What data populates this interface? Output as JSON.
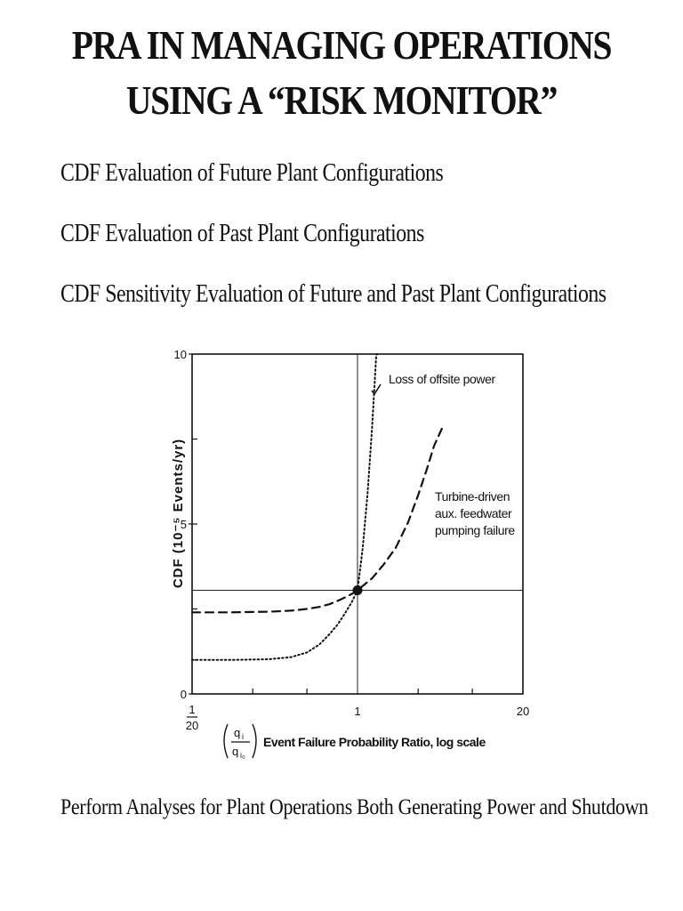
{
  "slide": {
    "title_line1": "PRA IN MANAGING OPERATIONS",
    "title_line2": "USING A “RISK MONITOR”",
    "bullets": [
      "CDF Evaluation of Future Plant Configurations",
      "CDF Evaluation of Past Plant Configurations",
      "CDF Sensitivity Evaluation of Future and Past Plant Configurations"
    ],
    "footer": "Perform Analyses for Plant Operations Both Generating Power and Shutdown"
  },
  "chart_data": {
    "type": "line",
    "title": "",
    "ylabel": "CDF (10⁻⁵ Events/yr)",
    "xlabel": "Event Failure Probability Ratio, log scale",
    "xlabel_ratio_num": "q",
    "xlabel_ratio_num_sub": "i",
    "xlabel_ratio_den": "q",
    "xlabel_ratio_den_sub": "i₀",
    "x_scale": "log",
    "xlim": [
      0.05,
      20
    ],
    "ylim": [
      0,
      10
    ],
    "x_ticks": [
      {
        "value": 0.05,
        "num": "1",
        "den": "20"
      },
      {
        "value": 1,
        "label": "1"
      },
      {
        "value": 20,
        "label": "20"
      }
    ],
    "y_ticks": [
      {
        "value": 0,
        "label": "0"
      },
      {
        "value": 5,
        "label": "5"
      },
      {
        "value": 10,
        "label": "10"
      }
    ],
    "reference_lines": {
      "x": 1,
      "y": 3.05
    },
    "base_point": {
      "x": 1,
      "y": 3.05
    },
    "series": [
      {
        "name": "Loss of offsite power",
        "style": "dotted",
        "x": [
          0.05,
          0.1,
          0.2,
          0.3,
          0.4,
          0.5,
          0.6,
          0.7,
          0.8,
          0.9,
          1.0,
          1.1,
          1.2,
          1.3,
          1.4,
          1.42
        ],
        "y": [
          1.0,
          1.0,
          1.02,
          1.08,
          1.22,
          1.45,
          1.75,
          2.05,
          2.38,
          2.7,
          3.05,
          4.3,
          5.9,
          7.8,
          9.9,
          10.0
        ]
      },
      {
        "name": "Turbine-driven aux. feedwater pumping failure",
        "style": "dashed",
        "x": [
          0.05,
          0.1,
          0.2,
          0.3,
          0.4,
          0.5,
          0.6,
          0.7,
          0.8,
          0.9,
          1.0,
          1.3,
          1.6,
          2.0,
          2.5,
          3.0,
          3.5,
          4.0,
          4.6
        ],
        "y": [
          2.4,
          2.4,
          2.42,
          2.45,
          2.5,
          2.56,
          2.64,
          2.74,
          2.84,
          2.94,
          3.05,
          3.4,
          3.8,
          4.3,
          5.05,
          5.85,
          6.6,
          7.3,
          7.8
        ]
      }
    ],
    "annotations": [
      "Loss of offsite power",
      "Turbine-driven",
      "aux. feedwater",
      "pumping failure"
    ]
  }
}
